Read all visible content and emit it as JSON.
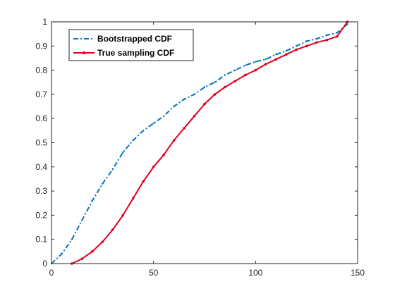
{
  "chart_data": {
    "type": "line",
    "title": "",
    "xlabel": "",
    "ylabel": "",
    "xlim": [
      0,
      150
    ],
    "ylim": [
      0,
      1
    ],
    "xticks": [
      0,
      50,
      100,
      150
    ],
    "xtick_labels": [
      "0",
      "50",
      "100",
      "150"
    ],
    "yticks": [
      0,
      0.1,
      0.2,
      0.3,
      0.4,
      0.5,
      0.6,
      0.7,
      0.8,
      0.9,
      1
    ],
    "ytick_labels": [
      "0",
      "0.1",
      "0.2",
      "0.3",
      "0.4",
      "0.5",
      "0.6",
      "0.7",
      "0.8",
      "0.9",
      "1"
    ],
    "grid": false,
    "legend_position": "top-left",
    "series": [
      {
        "name": "Bootstrapped CDF",
        "color": "#0072BD",
        "line_style": "dash-dot",
        "x": [
          0,
          5,
          10,
          15,
          20,
          25,
          30,
          35,
          40,
          45,
          50,
          55,
          60,
          65,
          70,
          75,
          80,
          85,
          90,
          95,
          100,
          105,
          110,
          115,
          120,
          125,
          130,
          135,
          140,
          145
        ],
        "y": [
          0,
          0.04,
          0.1,
          0.18,
          0.26,
          0.33,
          0.39,
          0.46,
          0.51,
          0.55,
          0.58,
          0.61,
          0.65,
          0.68,
          0.7,
          0.73,
          0.75,
          0.78,
          0.8,
          0.82,
          0.835,
          0.845,
          0.865,
          0.88,
          0.9,
          0.92,
          0.93,
          0.945,
          0.955,
          0.99
        ]
      },
      {
        "name": "True sampling CDF",
        "color": "#e00020",
        "line_style": "solid-markers",
        "x": [
          10,
          15,
          20,
          25,
          30,
          35,
          40,
          45,
          50,
          55,
          60,
          65,
          70,
          75,
          80,
          85,
          90,
          95,
          100,
          105,
          110,
          115,
          120,
          125,
          130,
          135,
          140,
          145
        ],
        "y": [
          0,
          0.02,
          0.05,
          0.09,
          0.14,
          0.2,
          0.27,
          0.34,
          0.4,
          0.45,
          0.51,
          0.56,
          0.61,
          0.66,
          0.7,
          0.73,
          0.755,
          0.78,
          0.8,
          0.825,
          0.845,
          0.865,
          0.885,
          0.9,
          0.915,
          0.925,
          0.94,
          1.0
        ]
      }
    ]
  }
}
